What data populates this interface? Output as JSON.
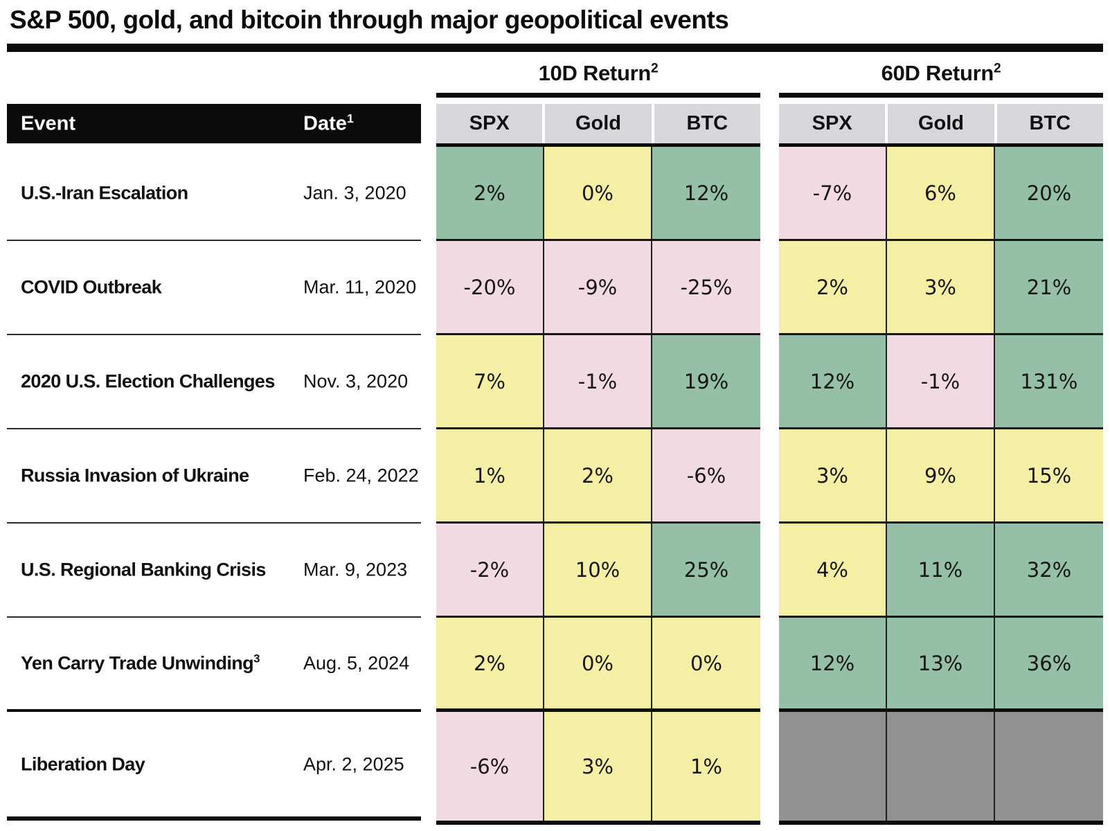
{
  "chart_data": {
    "type": "table",
    "title": "S&P 500, gold, and bitcoin through major geopolitical events",
    "header": {
      "event": "Event",
      "date": "Date",
      "date_footnote": "1"
    },
    "column_groups": [
      {
        "label": "10D Return",
        "footnote": "2",
        "columns": [
          "SPX",
          "Gold",
          "BTC"
        ]
      },
      {
        "label": "60D Return",
        "footnote": "2",
        "columns": [
          "SPX",
          "Gold",
          "BTC"
        ]
      }
    ],
    "rows": [
      {
        "event": "U.S.-Iran Escalation",
        "event_footnote": "",
        "date": "Jan. 3, 2020",
        "returns_10d": [
          {
            "value": "2%",
            "color": "green"
          },
          {
            "value": "0%",
            "color": "yellow"
          },
          {
            "value": "12%",
            "color": "green"
          }
        ],
        "returns_60d": [
          {
            "value": "-7%",
            "color": "pink"
          },
          {
            "value": "6%",
            "color": "yellow"
          },
          {
            "value": "20%",
            "color": "green"
          }
        ]
      },
      {
        "event": "COVID Outbreak",
        "event_footnote": "",
        "date": "Mar. 11, 2020",
        "returns_10d": [
          {
            "value": "-20%",
            "color": "pink"
          },
          {
            "value": "-9%",
            "color": "pink"
          },
          {
            "value": "-25%",
            "color": "pink"
          }
        ],
        "returns_60d": [
          {
            "value": "2%",
            "color": "yellow"
          },
          {
            "value": "3%",
            "color": "yellow"
          },
          {
            "value": "21%",
            "color": "green"
          }
        ]
      },
      {
        "event": "2020 U.S. Election Challenges",
        "event_footnote": "",
        "date": "Nov. 3, 2020",
        "returns_10d": [
          {
            "value": "7%",
            "color": "yellow"
          },
          {
            "value": "-1%",
            "color": "pink"
          },
          {
            "value": "19%",
            "color": "green"
          }
        ],
        "returns_60d": [
          {
            "value": "12%",
            "color": "green"
          },
          {
            "value": "-1%",
            "color": "pink"
          },
          {
            "value": "131%",
            "color": "green"
          }
        ]
      },
      {
        "event": "Russia Invasion of Ukraine",
        "event_footnote": "",
        "date": "Feb. 24, 2022",
        "returns_10d": [
          {
            "value": "1%",
            "color": "yellow"
          },
          {
            "value": "2%",
            "color": "yellow"
          },
          {
            "value": "-6%",
            "color": "pink"
          }
        ],
        "returns_60d": [
          {
            "value": "3%",
            "color": "yellow"
          },
          {
            "value": "9%",
            "color": "yellow"
          },
          {
            "value": "15%",
            "color": "yellow"
          }
        ]
      },
      {
        "event": "U.S. Regional Banking Crisis",
        "event_footnote": "",
        "date": "Mar. 9, 2023",
        "returns_10d": [
          {
            "value": "-2%",
            "color": "pink"
          },
          {
            "value": "10%",
            "color": "yellow"
          },
          {
            "value": "25%",
            "color": "green"
          }
        ],
        "returns_60d": [
          {
            "value": "4%",
            "color": "yellow"
          },
          {
            "value": "11%",
            "color": "green"
          },
          {
            "value": "32%",
            "color": "green"
          }
        ]
      },
      {
        "event": "Yen Carry Trade Unwinding",
        "event_footnote": "3",
        "date": "Aug. 5, 2024",
        "returns_10d": [
          {
            "value": "2%",
            "color": "yellow"
          },
          {
            "value": "0%",
            "color": "yellow"
          },
          {
            "value": "0%",
            "color": "yellow"
          }
        ],
        "returns_60d": [
          {
            "value": "12%",
            "color": "green"
          },
          {
            "value": "13%",
            "color": "green"
          },
          {
            "value": "36%",
            "color": "green"
          }
        ]
      },
      {
        "event": "Liberation Day",
        "event_footnote": "",
        "date": "Apr. 2, 2025",
        "returns_10d": [
          {
            "value": "-6%",
            "color": "pink"
          },
          {
            "value": "3%",
            "color": "yellow"
          },
          {
            "value": "1%",
            "color": "yellow"
          }
        ],
        "returns_60d": [
          {
            "value": "",
            "color": "gray"
          },
          {
            "value": "",
            "color": "gray"
          },
          {
            "value": "",
            "color": "gray"
          }
        ]
      }
    ],
    "colors": {
      "green": "#95bfa7",
      "yellow": "#f4efa4",
      "pink": "#f2dae3",
      "header_gray": "#d7d7db",
      "gray": "#919191"
    }
  }
}
